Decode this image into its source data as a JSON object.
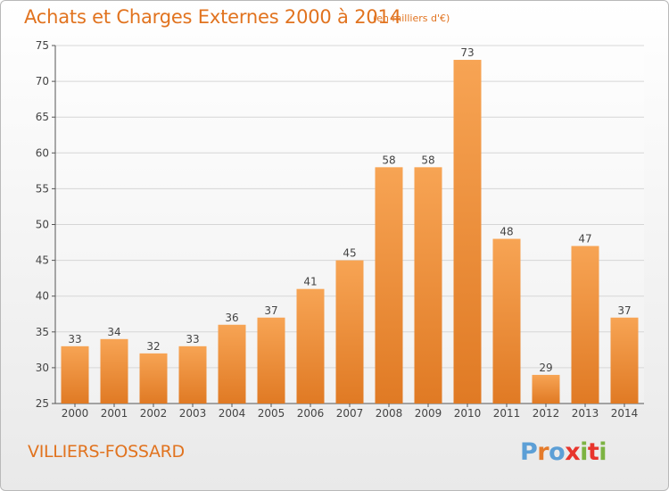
{
  "header": {
    "title": "Achats et Charges Externes 2000 à 2014",
    "unit": "(en milliers d'€)"
  },
  "footer": {
    "commune": "VILLIERS-FOSSARD",
    "logo": "Proxiti"
  },
  "colors": {
    "accent": "#e1731f",
    "bar_top": "#f7a454",
    "bar_bottom": "#e07a24",
    "logo_letters": [
      "#5c9fd6",
      "#e57b2a",
      "#5c9fd6",
      "#e8342c",
      "#7cb342",
      "#e8342c",
      "#7cb342"
    ]
  },
  "chart_data": {
    "type": "bar",
    "title": "Achats et Charges Externes 2000 à 2014",
    "subtitle": "(en milliers d'€)",
    "xlabel": "",
    "ylabel": "",
    "categories": [
      "2000",
      "2001",
      "2002",
      "2003",
      "2004",
      "2005",
      "2006",
      "2007",
      "2008",
      "2009",
      "2010",
      "2011",
      "2012",
      "2013",
      "2014"
    ],
    "values": [
      33,
      34,
      32,
      33,
      36,
      37,
      41,
      45,
      58,
      58,
      73,
      48,
      29,
      47,
      37
    ],
    "ylim": [
      25,
      75
    ],
    "yticks": [
      25,
      30,
      35,
      40,
      45,
      50,
      55,
      60,
      65,
      70,
      75
    ],
    "grid": "horizontal",
    "legend": "none"
  }
}
